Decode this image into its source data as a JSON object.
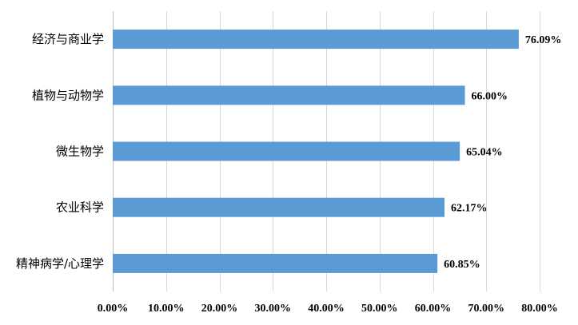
{
  "chart_data": {
    "type": "bar",
    "orientation": "horizontal",
    "categories": [
      "经济与商业学",
      "植物与动物学",
      "微生物学",
      "农业科学",
      "精神病学/心理学"
    ],
    "values": [
      76.09,
      66.0,
      65.04,
      62.17,
      60.85
    ],
    "data_labels": [
      "76.09%",
      "66.00%",
      "65.04%",
      "62.17%",
      "60.85%"
    ],
    "xlim": [
      0,
      80
    ],
    "xticks": [
      0,
      10,
      20,
      30,
      40,
      50,
      60,
      70,
      80
    ],
    "xtick_labels": [
      "0.00%",
      "10.00%",
      "20.00%",
      "30.00%",
      "40.00%",
      "50.00%",
      "60.00%",
      "70.00%",
      "80.00%"
    ],
    "grid": true,
    "legend": "none",
    "bar_color": "#5b9bd5",
    "title": "",
    "xlabel": "",
    "ylabel": ""
  }
}
